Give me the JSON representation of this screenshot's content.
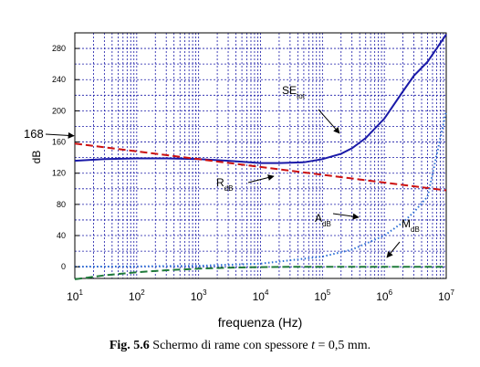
{
  "chart_data": {
    "type": "line",
    "xscale": "log",
    "xlim": [
      10,
      10000000
    ],
    "ylim": [
      -15,
      300
    ],
    "xlabel": "frequenza (Hz)",
    "ylabel": "dB",
    "grid": true,
    "xticks": [
      10,
      100,
      1000,
      10000,
      100000,
      1000000,
      10000000
    ],
    "xtick_labels": [
      {
        "base": "10",
        "exp": "1"
      },
      {
        "base": "10",
        "exp": "2"
      },
      {
        "base": "10",
        "exp": "3"
      },
      {
        "base": "10",
        "exp": "4"
      },
      {
        "base": "10",
        "exp": "5"
      },
      {
        "base": "10",
        "exp": "6"
      },
      {
        "base": "10",
        "exp": "7"
      }
    ],
    "yticks": [
      0,
      40,
      80,
      120,
      160,
      200,
      240,
      280
    ],
    "ytick_labels": [
      "0",
      "40",
      "80",
      "120",
      "160",
      "200",
      "240",
      "280"
    ],
    "series": [
      {
        "label_main": "SE",
        "label_sub": "tot",
        "color": "#1a1aa8",
        "style": "solid",
        "x": [
          10,
          30,
          100,
          300,
          1000,
          3000,
          10000,
          20000,
          50000,
          100000,
          200000,
          300000,
          500000,
          1000000,
          2000000,
          3000000,
          5000000,
          10000000
        ],
        "y": [
          136,
          138,
          139,
          139,
          138,
          136,
          133,
          133,
          134,
          138,
          145,
          152,
          165,
          190,
          225,
          245,
          263,
          298
        ]
      },
      {
        "label_main": "R",
        "label_sub": "dB",
        "color": "#cc1111",
        "style": "dashed",
        "x": [
          10,
          100,
          1000,
          10000,
          100000,
          1000000,
          10000000
        ],
        "y": [
          158,
          148,
          138,
          128,
          118,
          108,
          98
        ]
      },
      {
        "label_main": "A",
        "label_sub": "dB",
        "color": "#2a6fd6",
        "style": "dotted",
        "x": [
          10,
          100,
          1000,
          10000,
          100000,
          300000,
          1000000,
          2000000,
          3000000,
          5000000,
          10000000
        ],
        "y": [
          0.1,
          0.4,
          1.3,
          4,
          13,
          22,
          40,
          57,
          70,
          90,
          200
        ]
      },
      {
        "label_main": "M",
        "label_sub": "dB",
        "color": "#1f7a3a",
        "style": "dashed",
        "x": [
          10,
          30,
          100,
          300,
          1000,
          3000,
          10000,
          30000,
          100000,
          1000000,
          10000000
        ],
        "y": [
          -16,
          -11,
          -7,
          -4.5,
          -2.5,
          -1.2,
          -0.5,
          -0.1,
          0,
          0,
          0
        ]
      }
    ],
    "annotation": {
      "text": "168",
      "value": 168
    }
  },
  "caption": {
    "fig": "Fig. 5.6",
    "text_before": "Schermo di rame con spessore",
    "var": "t",
    "text_after": "= 0,5 mm."
  }
}
